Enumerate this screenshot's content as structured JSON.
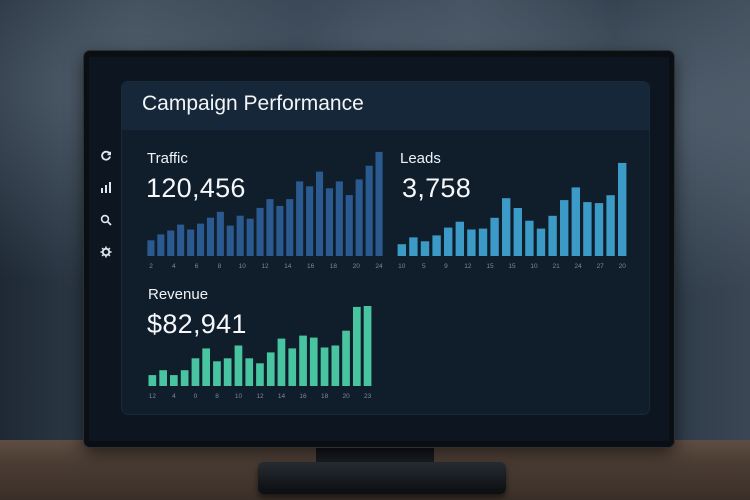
{
  "title": "Campaign Performance",
  "sidebar": {
    "icons": [
      "refresh-icon",
      "bar-chart-icon",
      "search-icon",
      "gear-icon"
    ]
  },
  "metrics": {
    "traffic": {
      "label": "Traffic",
      "value": "120,456"
    },
    "leads": {
      "label": "Leads",
      "value": "3,758"
    },
    "revenue": {
      "label": "Revenue",
      "value": "$82,941"
    }
  },
  "colors": {
    "traffic_bar": "#2a5a8f",
    "leads_bar": "#3b9bc6",
    "revenue_bar": "#48c4a0",
    "tick": "#7b8a99"
  },
  "chart_data": [
    {
      "type": "bar",
      "name": "traffic",
      "values": [
        16,
        22,
        26,
        32,
        27,
        33,
        39,
        45,
        31,
        41,
        38,
        49,
        58,
        51,
        58,
        76,
        71,
        86,
        69,
        76,
        62,
        78,
        92,
        106
      ],
      "xticks": [
        "2",
        "4",
        "6",
        "8",
        "10",
        "12",
        "14",
        "16",
        "18",
        "20",
        "24"
      ],
      "ylim": [
        0,
        110
      ]
    },
    {
      "type": "bar",
      "name": "leads",
      "values": [
        12,
        19,
        15,
        21,
        29,
        35,
        27,
        28,
        39,
        59,
        49,
        36,
        28,
        41,
        57,
        70,
        55,
        54,
        62,
        95
      ],
      "xticks": [
        "10",
        "5",
        "9",
        "12",
        "15",
        "15",
        "10",
        "21",
        "24",
        "27",
        "20"
      ],
      "ylim": [
        0,
        100
      ]
    },
    {
      "type": "bar",
      "name": "revenue",
      "values": [
        11,
        16,
        11,
        16,
        28,
        38,
        25,
        28,
        41,
        28,
        23,
        34,
        48,
        38,
        51,
        49,
        39,
        41,
        56,
        80,
        81
      ],
      "xticks": [
        "12",
        "4",
        "0",
        "8",
        "10",
        "12",
        "14",
        "16",
        "18",
        "20",
        "23"
      ],
      "ylim": [
        0,
        85
      ]
    }
  ]
}
